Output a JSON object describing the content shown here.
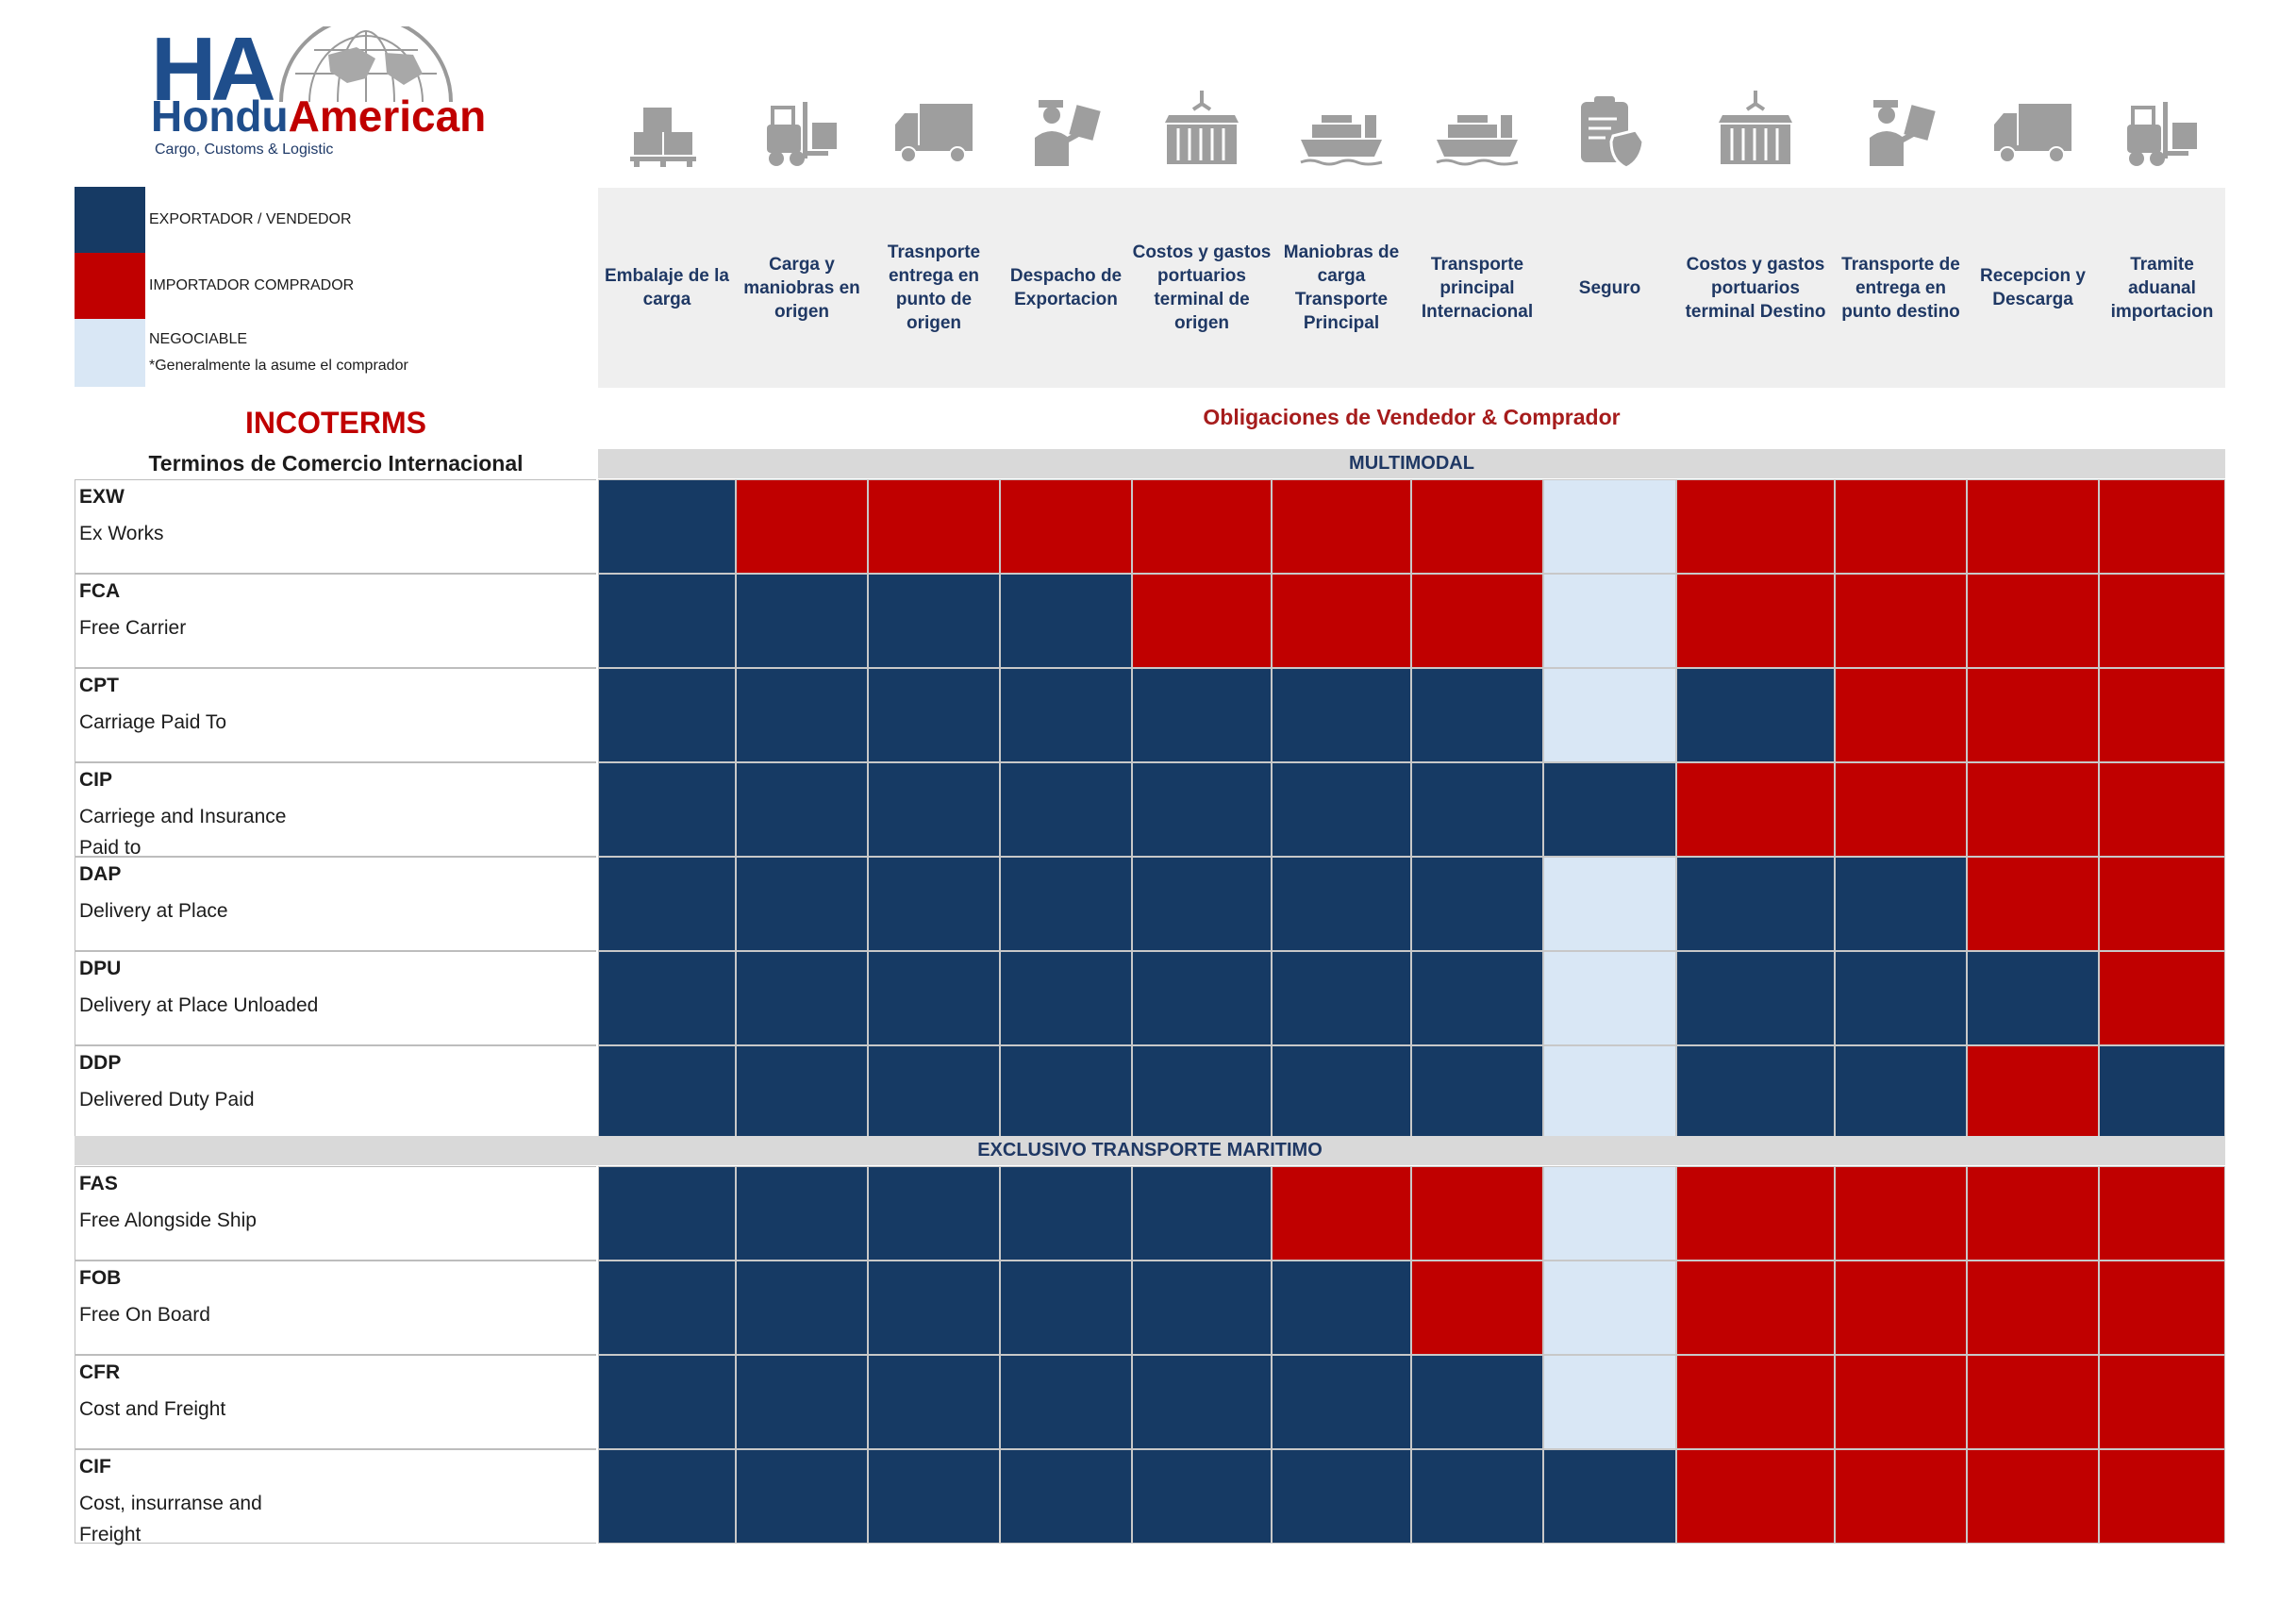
{
  "brand": {
    "logo_letters": "HA",
    "name_part1": "Hondu",
    "name_part2": "American",
    "tagline": "Cargo, Customs & Logistic"
  },
  "colors": {
    "seller": "#163a64",
    "buyer": "#c00000",
    "negotiable": "#d9e7f5",
    "accent_red": "#c00000",
    "header_band": "#efefef"
  },
  "legend": {
    "seller": "EXPORTADOR / VENDEDOR",
    "buyer": "IMPORTADOR COMPRADOR",
    "negotiable": "NEGOCIABLE",
    "negotiable_note": "*Generalmente la asume el comprador"
  },
  "columns": [
    {
      "label": "Embalaje de la carga",
      "icon": "pallet-boxes-icon"
    },
    {
      "label": "Carga y maniobras en origen",
      "icon": "forklift-icon"
    },
    {
      "label": "Trasnporte entrega en punto de origen",
      "icon": "truck-icon"
    },
    {
      "label": "Despacho de Exportacion",
      "icon": "customs-officer-icon"
    },
    {
      "label": "Costos y gastos portuarios terminal de origen",
      "icon": "container-crane-icon"
    },
    {
      "label": "Maniobras de carga Transporte Principal",
      "icon": "cargo-ship-icon"
    },
    {
      "label": "Transporte principal Internacional",
      "icon": "cargo-ship-icon"
    },
    {
      "label": "Seguro",
      "icon": "insurance-clipboard-icon"
    },
    {
      "label": "Costos y gastos portuarios terminal Destino",
      "icon": "container-crane-icon"
    },
    {
      "label": "Transporte de entrega en punto destino",
      "icon": "customs-officer-icon"
    },
    {
      "label": "Recepcion y Descarga",
      "icon": "truck-icon"
    },
    {
      "label": "Tramite aduanal importacion",
      "icon": "forklift-icon"
    }
  ],
  "titles": {
    "incoterms": "INCOTERMS",
    "incoterms_sub": "Terminos de Comercio Internacional",
    "obligations": "Obligaciones de Vendedor & Comprador"
  },
  "sections": [
    {
      "label": "MULTIMODAL",
      "terms": [
        {
          "code": "EXW",
          "name": "Ex Works",
          "cells": "SBBBBBBNBBBB"
        },
        {
          "code": "FCA",
          "name": "Free Carrier",
          "cells": "SSSSBBBNBBBB"
        },
        {
          "code": "CPT",
          "name": "Carriage Paid To",
          "cells": "SSSSSSSNSBBB"
        },
        {
          "code": "CIP",
          "name": "Carriege and Insurance\nPaid to",
          "cells": "SSSSSSSSBBBB"
        },
        {
          "code": "DAP",
          "name": "Delivery at Place",
          "cells": "SSSSSSSNSSBB"
        },
        {
          "code": "DPU",
          "name": "Delivery at Place  Unloaded",
          "cells": "SSSSSSSNSSSB"
        },
        {
          "code": "DDP",
          "name": "Delivered Duty Paid",
          "cells": "SSSSSSSNSSBS"
        }
      ]
    },
    {
      "label": "EXCLUSIVO TRANSPORTE MARITIMO",
      "terms": [
        {
          "code": "FAS",
          "name": "Free Alongside Ship",
          "cells": "SSSSSBBNBBBB"
        },
        {
          "code": "FOB",
          "name": "Free On Board",
          "cells": "SSSSSSBNBBBB"
        },
        {
          "code": "CFR",
          "name": "Cost and Freight",
          "cells": "SSSSSSSNBBBB"
        },
        {
          "code": "CIF",
          "name": "Cost, insurranse and\nFreight",
          "cells": "SSSSSSSSBBBB"
        }
      ]
    }
  ]
}
